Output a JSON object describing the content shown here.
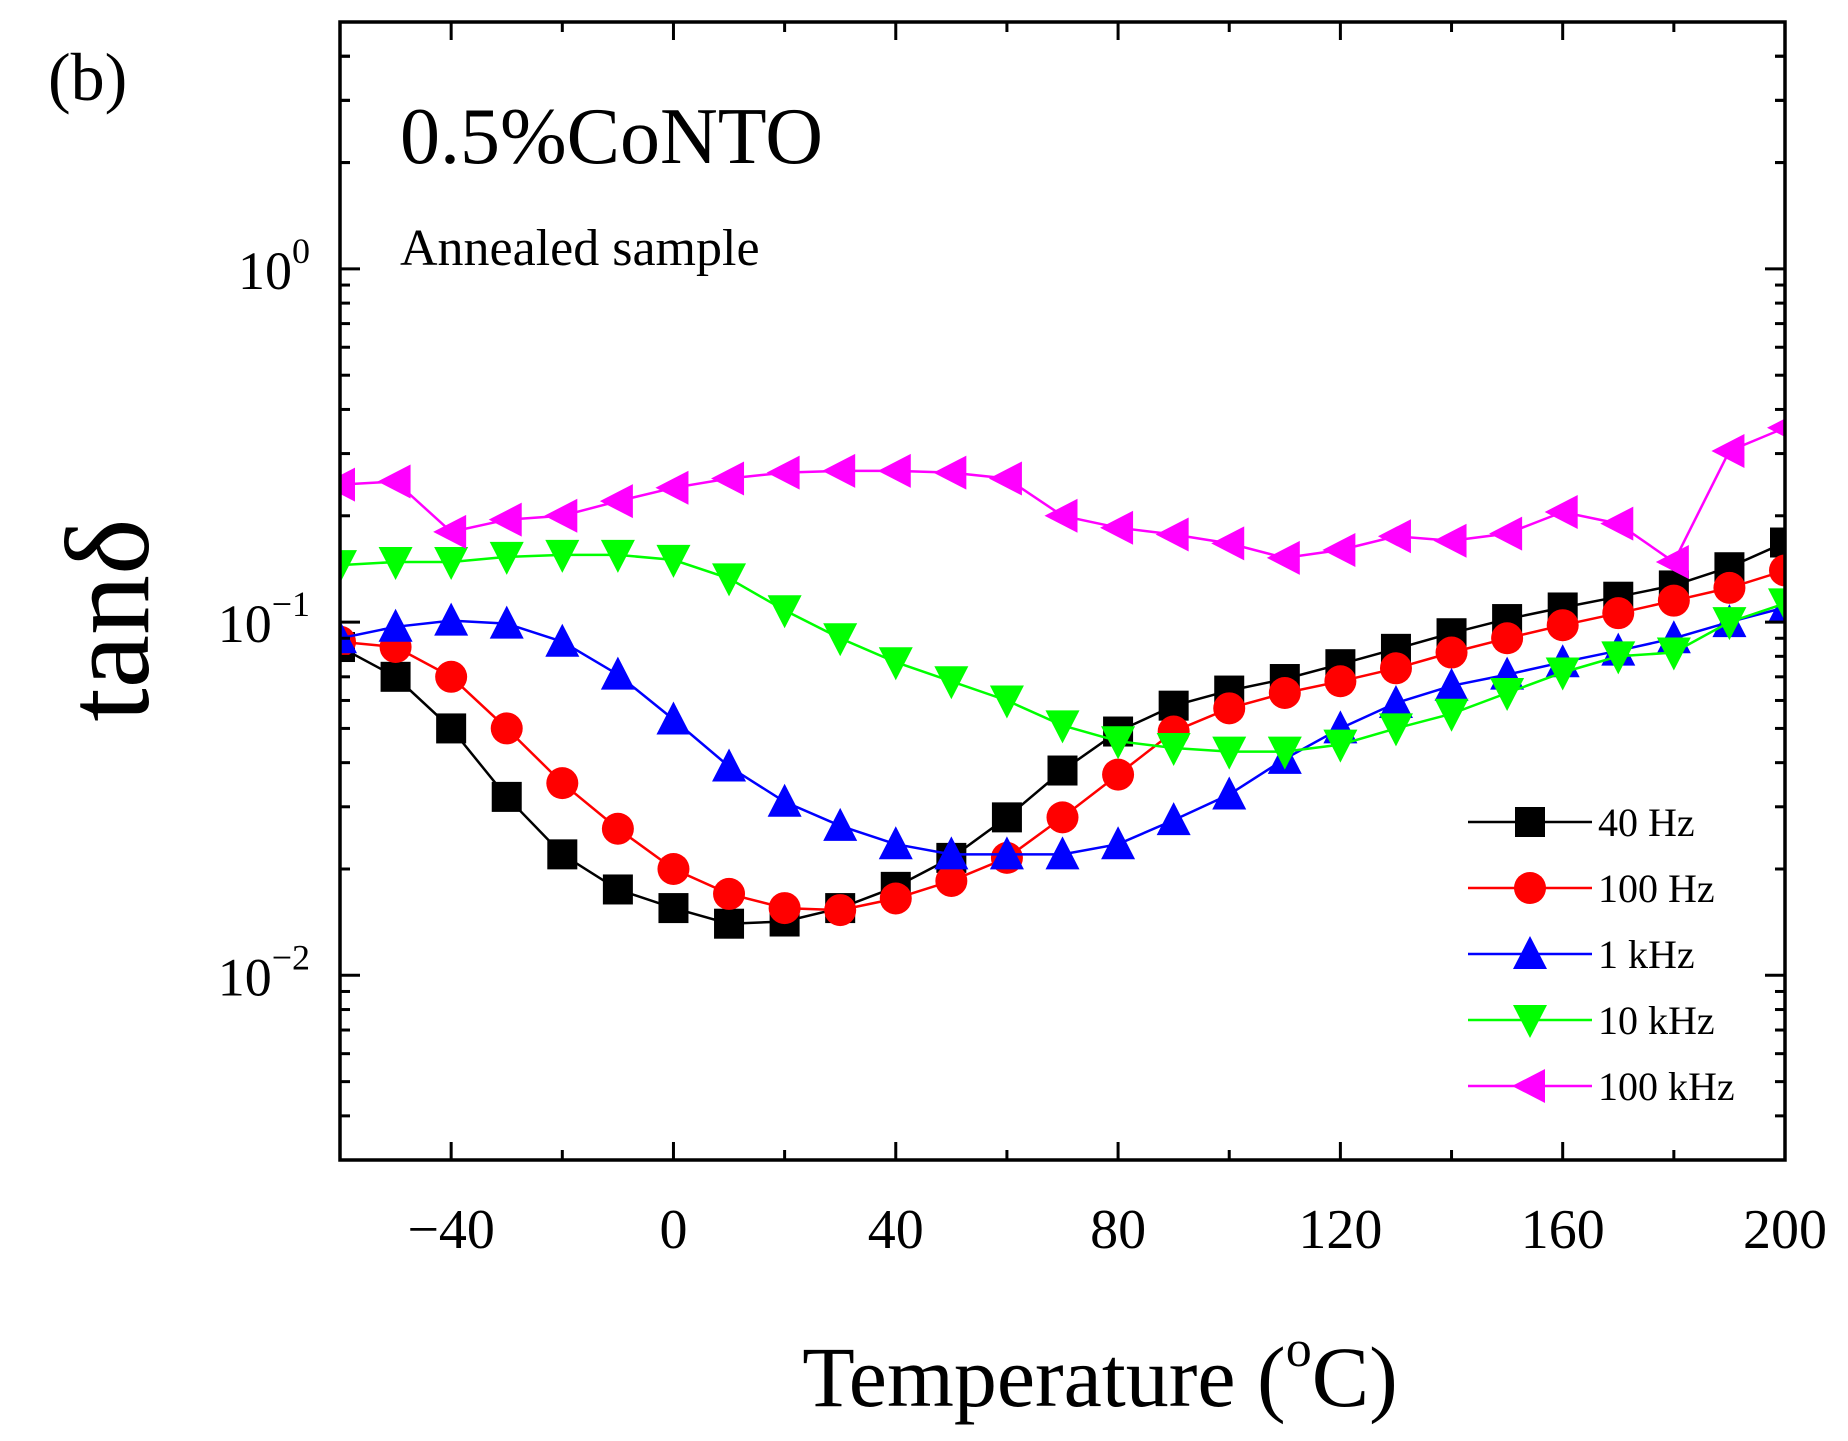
{
  "chart_data": {
    "type": "line",
    "panel_label": "(b)",
    "title": "0.5%CoNTO",
    "subtitle": "Annealed sample",
    "xlabel": {
      "text": "Temperature (",
      "sup": "o",
      "unit": "C)"
    },
    "ylabel": {
      "text": "tan",
      "symbol": "δ"
    },
    "xlim": [
      -60,
      200
    ],
    "ylim": [
      0.003,
      5
    ],
    "yscale": "log",
    "xticks": [
      -40,
      0,
      40,
      80,
      120,
      160,
      200
    ],
    "xtick_labels": [
      "−40",
      "0",
      "40",
      "80",
      "120",
      "160",
      "200"
    ],
    "yticks": [
      {
        "value": 1,
        "base": "10",
        "exp": "0"
      },
      {
        "value": 0.1,
        "base": "10",
        "exp": "−1"
      },
      {
        "value": 0.01,
        "base": "10",
        "exp": "−2"
      }
    ],
    "legend_position": "lower-right",
    "x": [
      -60,
      -50,
      -40,
      -30,
      -20,
      -10,
      0,
      10,
      20,
      30,
      40,
      50,
      60,
      70,
      80,
      90,
      100,
      110,
      120,
      130,
      140,
      150,
      160,
      170,
      180,
      190,
      200
    ],
    "series": [
      {
        "name": "40 Hz",
        "color": "#000000",
        "marker": "square",
        "values": [
          0.085,
          0.07,
          0.05,
          0.032,
          0.022,
          0.0175,
          0.0155,
          0.014,
          0.0142,
          0.0155,
          0.0178,
          0.0215,
          0.028,
          0.038,
          0.049,
          0.058,
          0.064,
          0.069,
          0.076,
          0.084,
          0.093,
          0.102,
          0.11,
          0.118,
          0.127,
          0.143,
          0.168
        ]
      },
      {
        "name": "100 Hz",
        "color": "#ff0000",
        "marker": "circle",
        "values": [
          0.088,
          0.085,
          0.07,
          0.05,
          0.035,
          0.026,
          0.02,
          0.017,
          0.0155,
          0.0153,
          0.0165,
          0.0185,
          0.0215,
          0.028,
          0.037,
          0.049,
          0.057,
          0.063,
          0.068,
          0.074,
          0.082,
          0.09,
          0.098,
          0.106,
          0.115,
          0.125,
          0.14
        ]
      },
      {
        "name": "1 kHz",
        "color": "#0000ff",
        "marker": "triangle-up",
        "values": [
          0.09,
          0.097,
          0.101,
          0.099,
          0.088,
          0.071,
          0.053,
          0.039,
          0.031,
          0.0265,
          0.0235,
          0.022,
          0.022,
          0.022,
          0.0235,
          0.0275,
          0.0325,
          0.041,
          0.05,
          0.059,
          0.066,
          0.071,
          0.077,
          0.083,
          0.09,
          0.1,
          0.11
        ]
      },
      {
        "name": "10 kHz",
        "color": "#00ff00",
        "marker": "triangle-down",
        "values": [
          0.145,
          0.148,
          0.148,
          0.153,
          0.155,
          0.155,
          0.15,
          0.133,
          0.108,
          0.09,
          0.077,
          0.068,
          0.06,
          0.051,
          0.046,
          0.044,
          0.043,
          0.043,
          0.045,
          0.05,
          0.055,
          0.063,
          0.072,
          0.08,
          0.082,
          0.1,
          0.113
        ]
      },
      {
        "name": "100 kHz",
        "color": "#ff00ff",
        "marker": "triangle-left",
        "values": [
          0.245,
          0.25,
          0.18,
          0.195,
          0.2,
          0.22,
          0.24,
          0.255,
          0.265,
          0.268,
          0.268,
          0.265,
          0.255,
          0.2,
          0.185,
          0.177,
          0.167,
          0.152,
          0.16,
          0.175,
          0.17,
          0.178,
          0.205,
          0.19,
          0.148,
          0.305,
          0.355
        ]
      }
    ]
  }
}
